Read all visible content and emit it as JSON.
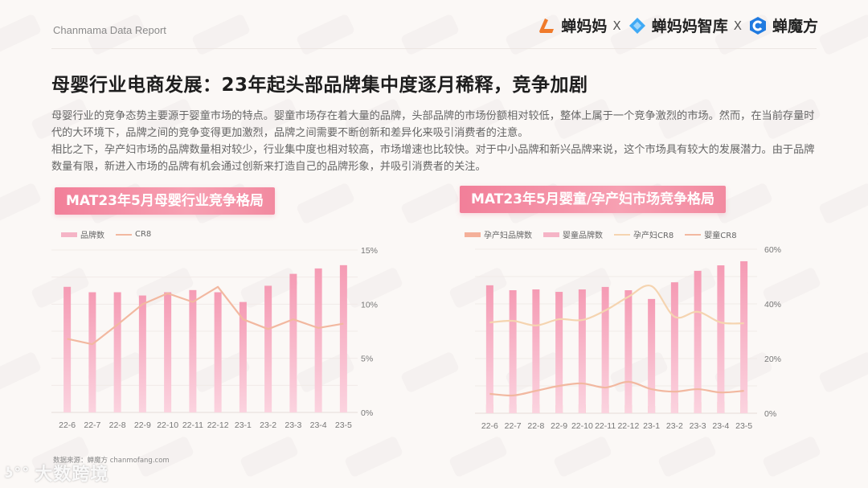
{
  "header": {
    "brand": "Chanmama Data Report",
    "logos": [
      {
        "name": "蝉妈妈",
        "color": "#f07a2a"
      },
      {
        "name": "蝉妈妈智库",
        "color": "#3fa9f5"
      },
      {
        "name": "蝉魔方",
        "color": "#1f7ae0"
      }
    ],
    "separator": "X"
  },
  "title": "母婴行业电商发展：23年起头部品牌集中度逐月稀释，竞争加剧",
  "paragraphs": [
    "母婴行业的竞争态势主要源于婴童市场的特点。婴童市场存在着大量的品牌，头部品牌的市场份额相对较低，整体上属于一个竞争激烈的市场。然而，在当前存量时代的大环境下，品牌之间的竞争变得更加激烈，品牌之间需要不断创新和差异化来吸引消费者的注意。",
    "相比之下，孕产妇市场的品牌数量相对较少，行业集中度也相对较高，市场增速也比较快。对于中小品牌和新兴品牌来说，这个市场具有较大的发展潜力。由于品牌数量有限，新进入市场的品牌有机会通过创新来打造自己的品牌形象，并吸引消费者的关注。"
  ],
  "source": "数据来源：蝉魔方 chanmofang.com",
  "corner_watermark": "大数跨境",
  "colors": {
    "bar_pink": "#f7a3bb",
    "bar_maternity": "#f4b09a",
    "line_cr8": "#f2b8a0",
    "line_maternity_cr8": "#f5d4b0",
    "title_bg": "#f27f99"
  },
  "chart_data": [
    {
      "type": "bar+line",
      "title": "MAT23年5月母婴行业竞争格局",
      "categories": [
        "22-6",
        "22-7",
        "22-8",
        "22-9",
        "22-10",
        "22-11",
        "22-12",
        "23-1",
        "23-2",
        "23-3",
        "23-4",
        "23-5"
      ],
      "series": [
        {
          "name": "品牌数",
          "type": "bar",
          "axis": "left (unlabeled)",
          "values": [
            11.6,
            11.1,
            11.1,
            10.8,
            11.1,
            11.3,
            11.1,
            10.2,
            11.7,
            12.8,
            13.3,
            13.6
          ]
        },
        {
          "name": "CR8",
          "type": "line",
          "axis": "right",
          "unit": "%",
          "values": [
            6.8,
            6.3,
            8.1,
            10.0,
            11.0,
            10.2,
            11.6,
            8.6,
            7.7,
            8.6,
            7.8,
            8.2
          ]
        }
      ],
      "right_axis": {
        "ticks": [
          "0%",
          "5%",
          "10%",
          "15%"
        ],
        "range": [
          0,
          15
        ]
      },
      "legend": [
        "品牌数",
        "CR8"
      ],
      "legend_position": "top-left",
      "grid": true
    },
    {
      "type": "bar+line",
      "title": "MAT23年5月婴童/孕产妇市场竞争格局",
      "categories": [
        "22-6",
        "22-7",
        "22-8",
        "22-9",
        "22-10",
        "22-11",
        "22-12",
        "23-1",
        "23-2",
        "23-3",
        "23-4",
        "23-5"
      ],
      "series": [
        {
          "name": "孕产妇品牌数",
          "type": "bar",
          "axis": "left (unlabeled)",
          "values": [
            3.2,
            3.2,
            3.2,
            3.0,
            3.2,
            3.2,
            3.0,
            2.6,
            3.8,
            4.0,
            4.2,
            4.6
          ]
        },
        {
          "name": "婴童品牌数",
          "type": "bar",
          "axis": "left (unlabeled)",
          "values": [
            46.8,
            45.0,
            45.3,
            44.4,
            45.3,
            46.2,
            45.0,
            41.8,
            47.9,
            52.1,
            54.1,
            55.6
          ]
        },
        {
          "name": "孕产妇CR8",
          "type": "line",
          "axis": "right",
          "unit": "%",
          "values": [
            33.2,
            33.8,
            32.1,
            34.4,
            34.1,
            37.6,
            42.6,
            46.5,
            35.3,
            37.1,
            33.2,
            32.9
          ]
        },
        {
          "name": "婴童CR8",
          "type": "line",
          "axis": "right",
          "unit": "%",
          "values": [
            7.1,
            6.5,
            8.2,
            10.0,
            10.9,
            9.4,
            11.5,
            8.8,
            7.9,
            8.8,
            7.6,
            8.2
          ]
        }
      ],
      "right_axis": {
        "ticks": [
          "0%",
          "20%",
          "40%",
          "60%"
        ],
        "range": [
          0,
          60
        ]
      },
      "legend": [
        "孕产妇品牌数",
        "婴童品牌数",
        "孕产妇CR8",
        "婴童CR8"
      ],
      "legend_position": "top-left",
      "grid": true
    }
  ]
}
